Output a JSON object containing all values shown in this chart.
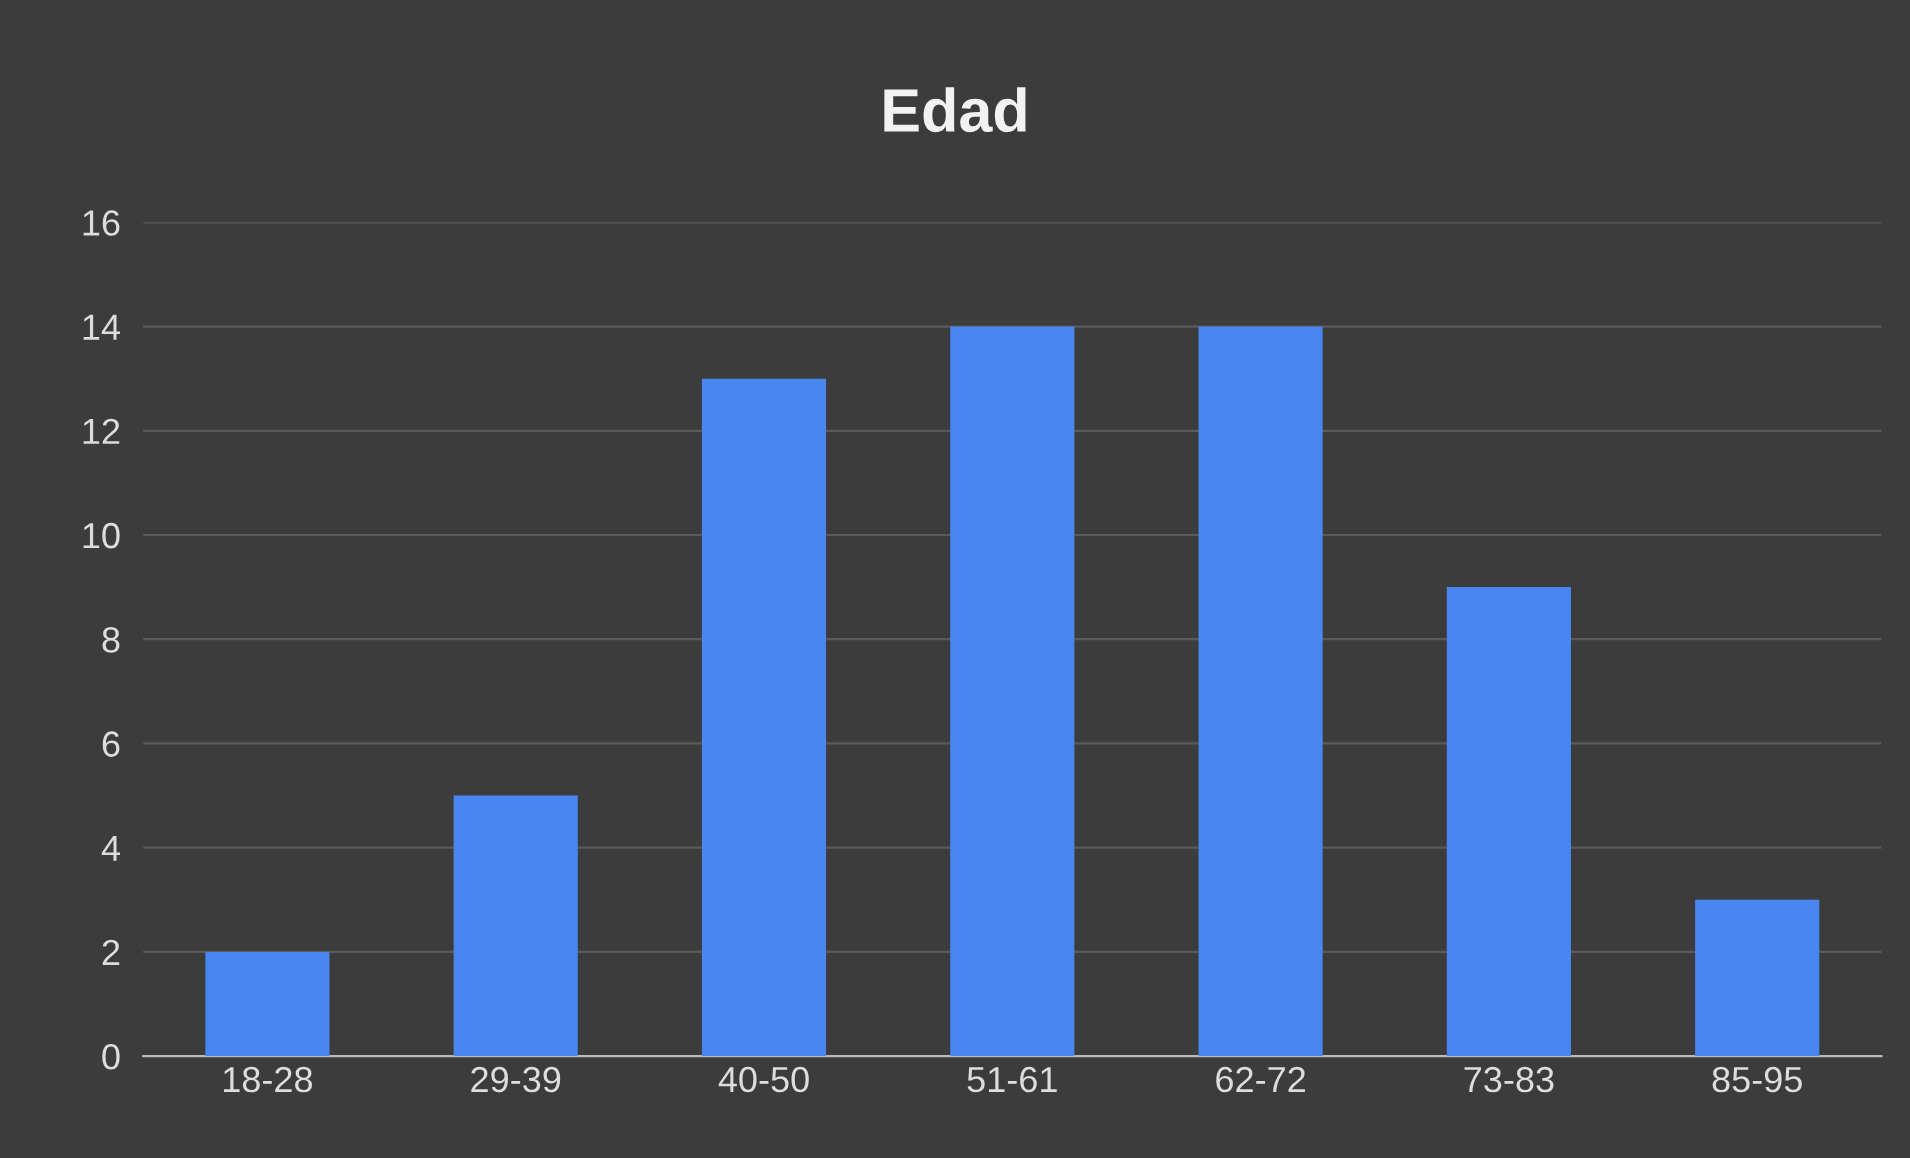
{
  "chart_data": {
    "type": "bar",
    "title": "Edad",
    "categories": [
      "18-28",
      "29-39",
      "40-50",
      "51-61",
      "62-72",
      "73-83",
      "85-95"
    ],
    "values": [
      2,
      5,
      13,
      14,
      14,
      9,
      3
    ],
    "color": "#4a86f2",
    "ylim": [
      0,
      16
    ],
    "yticks": [
      0,
      2,
      4,
      6,
      8,
      10,
      12,
      14,
      16
    ],
    "grid": "y",
    "legend": false
  }
}
